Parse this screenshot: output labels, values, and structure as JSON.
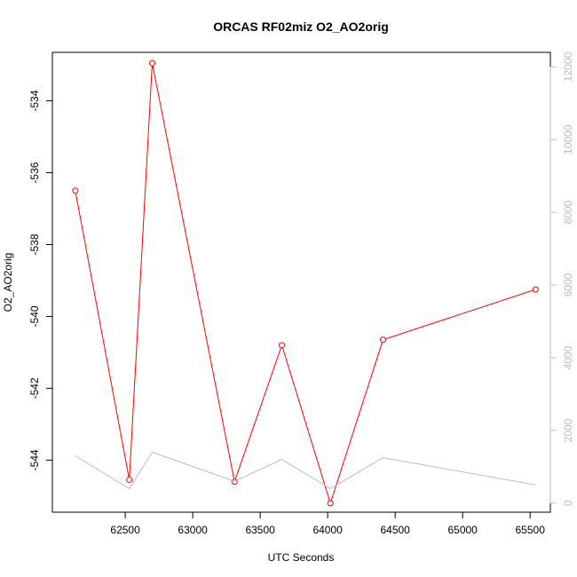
{
  "chart_data": {
    "type": "line",
    "title": "ORCAS RF02miz O2_AO2orig",
    "xlabel": "UTC Seconds",
    "ylabel": "O2_AO2orig",
    "xlim": [
      61960,
      65650
    ],
    "ylim": [
      -545.45,
      -532.65
    ],
    "y2lim": [
      -250,
      12400
    ],
    "x_ticks": [
      62500,
      63000,
      63500,
      64000,
      64500,
      65000,
      65500
    ],
    "y_ticks": [
      -544,
      -542,
      -540,
      -538,
      -536,
      -534
    ],
    "y2_ticks": [
      0,
      2000,
      4000,
      6000,
      8000,
      10000,
      12000
    ],
    "grid": false,
    "series": [
      {
        "axis": "left",
        "color": "#ff0000",
        "marker": "open-circle",
        "x": [
          62130,
          62530,
          62700,
          63310,
          63660,
          64020,
          64410,
          65540
        ],
        "y": [
          -536.5,
          -544.55,
          -532.95,
          -544.6,
          -540.8,
          -545.2,
          -540.65,
          -539.25
        ]
      },
      {
        "axis": "right",
        "color": "#bebebe",
        "marker": "none",
        "x": [
          62130,
          62530,
          62700,
          63310,
          63660,
          64020,
          64410,
          65540
        ],
        "y": [
          1300,
          400,
          1400,
          600,
          1200,
          400,
          1250,
          500
        ]
      }
    ]
  }
}
